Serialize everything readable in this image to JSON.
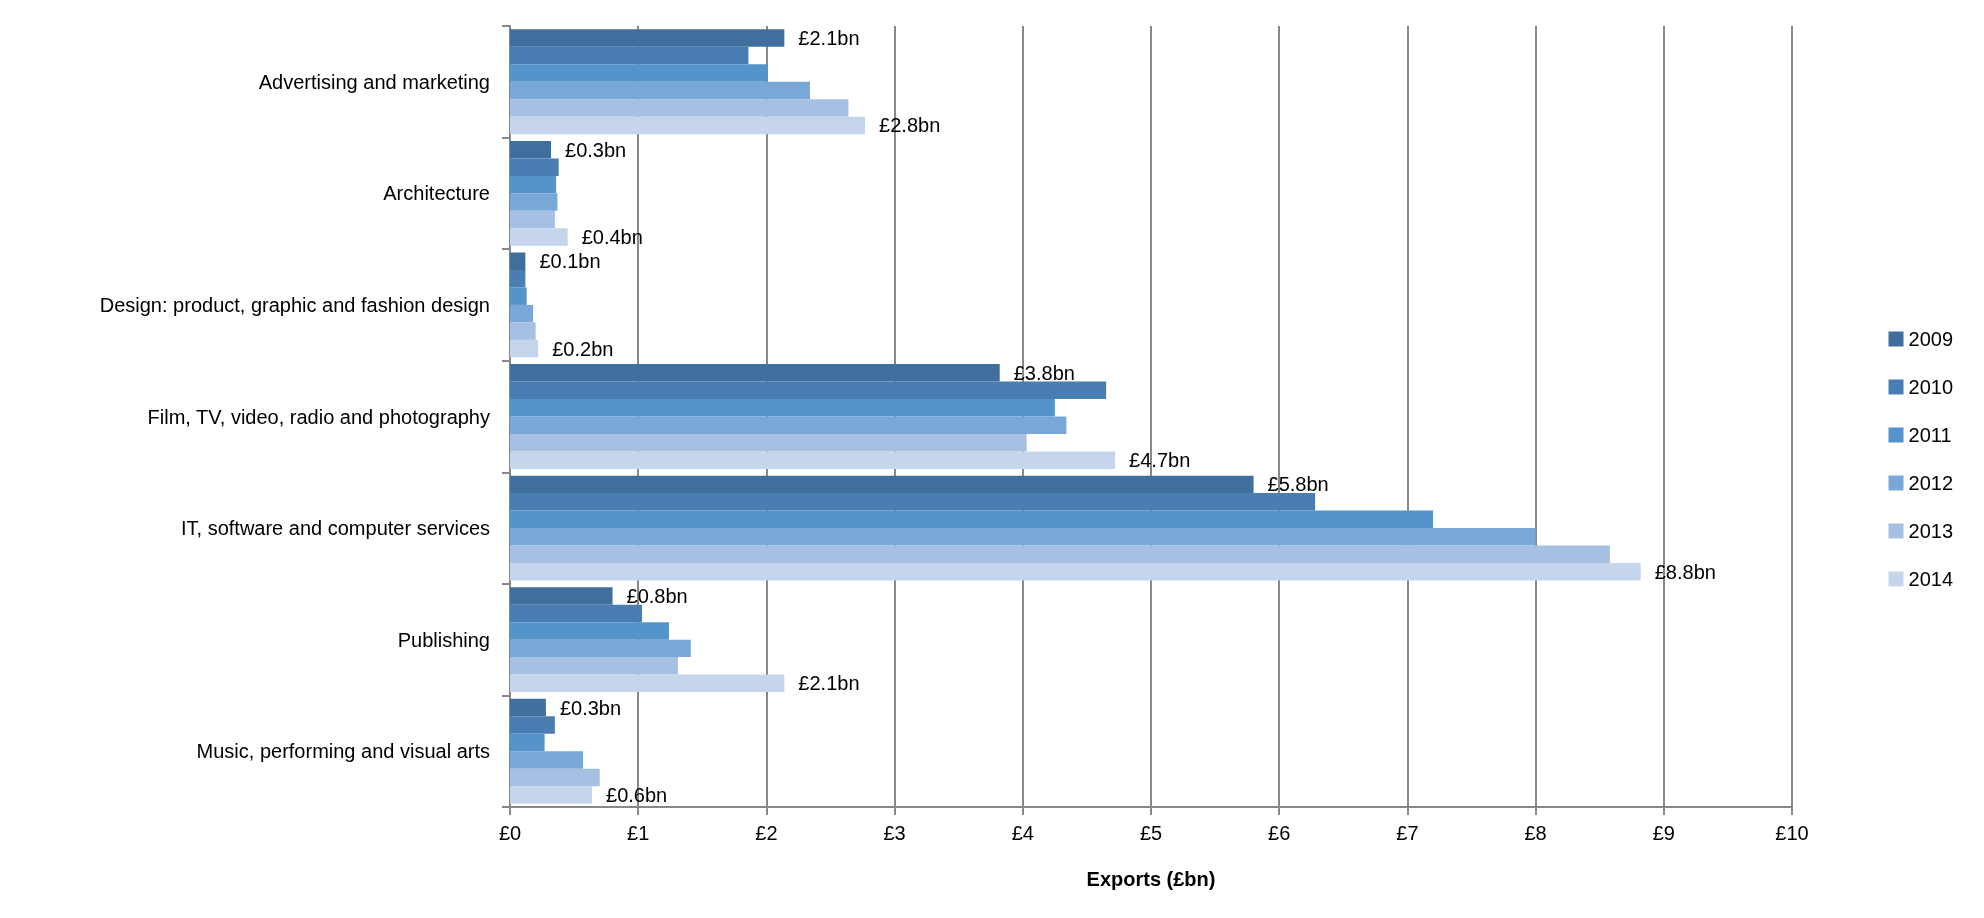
{
  "chart_data": {
    "type": "bar",
    "orientation": "horizontal",
    "xlabel": "Exports (£bn)",
    "categories": [
      "Advertising and marketing",
      "Architecture",
      "Design: product, graphic and fashion design",
      "Film, TV, video, radio and photography",
      "IT, software and computer services",
      "Publishing",
      "Music, performing and visual arts"
    ],
    "series": [
      {
        "name": "2009",
        "color": "#416f9d",
        "values": [
          2.14,
          0.32,
          0.12,
          3.82,
          5.8,
          0.8,
          0.28
        ],
        "value_labels": [
          "£2.1bn",
          "£0.3bn",
          "£0.1bn",
          "£3.8bn",
          "£5.8bn",
          "£0.8bn",
          "£0.3bn"
        ]
      },
      {
        "name": "2010",
        "color": "#4a7eb3",
        "values": [
          1.86,
          0.38,
          0.12,
          4.65,
          6.28,
          1.03,
          0.35
        ]
      },
      {
        "name": "2011",
        "color": "#5593cb",
        "values": [
          2.01,
          0.36,
          0.13,
          4.25,
          7.2,
          1.24,
          0.27
        ]
      },
      {
        "name": "2012",
        "color": "#79a7d8",
        "values": [
          2.34,
          0.37,
          0.18,
          4.34,
          8.0,
          1.41,
          0.57
        ]
      },
      {
        "name": "2013",
        "color": "#a5c0e3",
        "values": [
          2.64,
          0.35,
          0.2,
          4.03,
          8.58,
          1.31,
          0.7
        ]
      },
      {
        "name": "2014",
        "color": "#c5d5eb",
        "values": [
          2.77,
          0.45,
          0.22,
          4.72,
          8.82,
          2.14,
          0.64
        ],
        "value_labels": [
          "£2.8bn",
          "£0.4bn",
          "£0.2bn",
          "£4.7bn",
          "£8.8bn",
          "£2.1bn",
          "£0.6bn"
        ]
      }
    ],
    "xlim": [
      0,
      10
    ],
    "xticks": [
      {
        "value": 0,
        "label": "£0"
      },
      {
        "value": 1,
        "label": "£1"
      },
      {
        "value": 2,
        "label": "£2"
      },
      {
        "value": 3,
        "label": "£3"
      },
      {
        "value": 4,
        "label": "£4"
      },
      {
        "value": 5,
        "label": "£5"
      },
      {
        "value": 6,
        "label": "£6"
      },
      {
        "value": 7,
        "label": "£7"
      },
      {
        "value": 8,
        "label": "£8"
      },
      {
        "value": 9,
        "label": "£9"
      },
      {
        "value": 10,
        "label": "£10"
      }
    ],
    "grid": "x",
    "legend": "right"
  }
}
